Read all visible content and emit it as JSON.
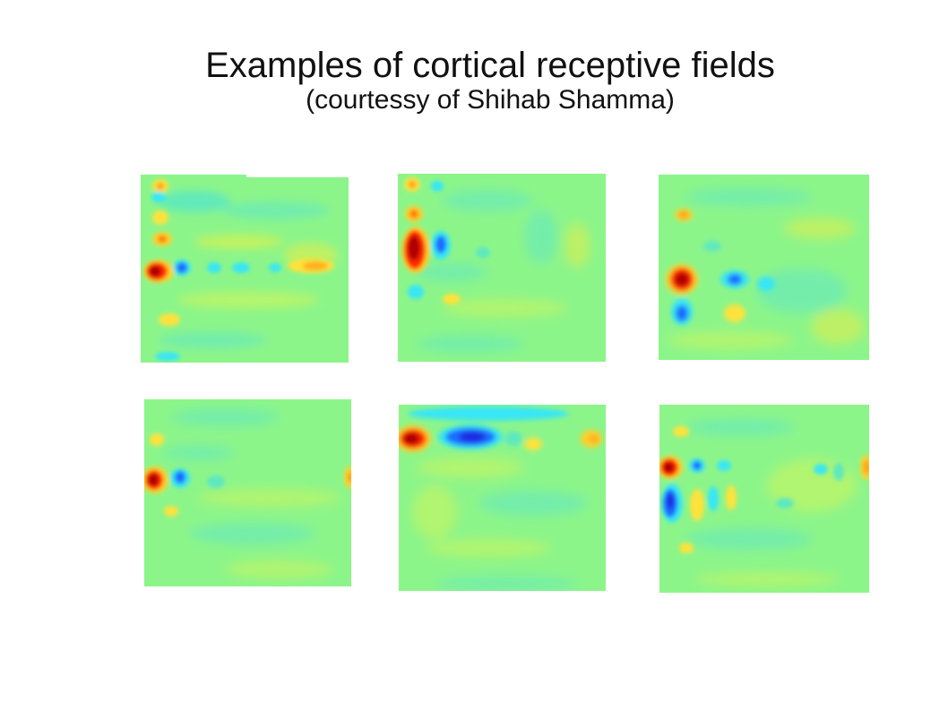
{
  "slide": {
    "title": "Examples of cortical receptive fields",
    "subtitle": "(courtessy of Shihab Shamma)"
  },
  "colors": {
    "background": "#ffffff",
    "field_base": "#8cf58a",
    "positive_strong": "#b00000",
    "positive": "#ff2a00",
    "positive_weak": "#fff23c",
    "negative_strong": "#1a2be0",
    "negative": "#1e8cff",
    "negative_weak": "#39e6f5"
  },
  "panels": [
    {
      "name": "receptive-field-1",
      "colormap": "jet"
    },
    {
      "name": "receptive-field-2",
      "colormap": "jet"
    },
    {
      "name": "receptive-field-3",
      "colormap": "jet"
    },
    {
      "name": "receptive-field-4",
      "colormap": "jet"
    },
    {
      "name": "receptive-field-5",
      "colormap": "jet"
    },
    {
      "name": "receptive-field-6",
      "colormap": "jet"
    }
  ]
}
